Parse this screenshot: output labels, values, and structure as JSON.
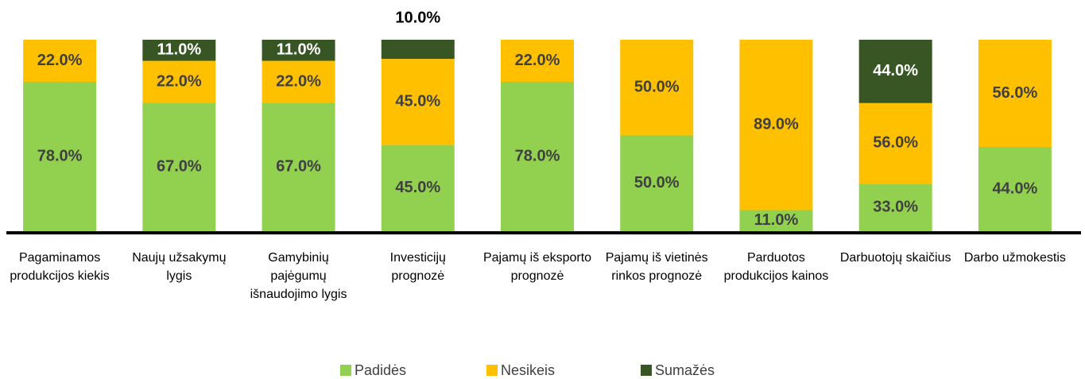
{
  "chart_data": {
    "type": "bar",
    "stacking": "percent",
    "categories": [
      "Pagaminamos produkcijos kiekis",
      "Naujų užsakymų lygis",
      "Gamybinių pajėgumų išnaudojimo lygis",
      "Investicijų prognozė",
      "Pajamų iš eksporto prognozė",
      "Pajamų iš vietinės rinkos prognozė",
      "Parduotos produkcijos kainos",
      "Darbuotojų skaičius",
      "Darbo užmokestis"
    ],
    "series": [
      {
        "name": "Padidės",
        "color": "#92d050",
        "label_color": "#404040",
        "values": [
          78,
          67,
          67,
          45,
          78,
          50,
          11,
          33,
          44
        ],
        "value_labels": [
          "78.0%",
          "67.0%",
          "67.0%",
          "45.0%",
          "78.0%",
          "50.0%",
          "11.0%",
          "33.0%",
          "44.0%"
        ]
      },
      {
        "name": "Nesikeis",
        "color": "#ffc000",
        "label_color": "#404040",
        "values": [
          22,
          22,
          22,
          45,
          22,
          50,
          89,
          56,
          56
        ],
        "value_labels": [
          "22.0%",
          "22.0%",
          "22.0%",
          "45.0%",
          "22.0%",
          "50.0%",
          "89.0%",
          "56.0%",
          "56.0%"
        ]
      },
      {
        "name": "Sumažės",
        "color": "#375623",
        "label_color": "#ffffff",
        "values": [
          null,
          11,
          11,
          10,
          null,
          null,
          null,
          44,
          null
        ],
        "value_labels": [
          null,
          "11.0%",
          "11.0%",
          "10.0%",
          null,
          null,
          null,
          "44.0%",
          null
        ]
      }
    ],
    "legend": "bottom"
  }
}
